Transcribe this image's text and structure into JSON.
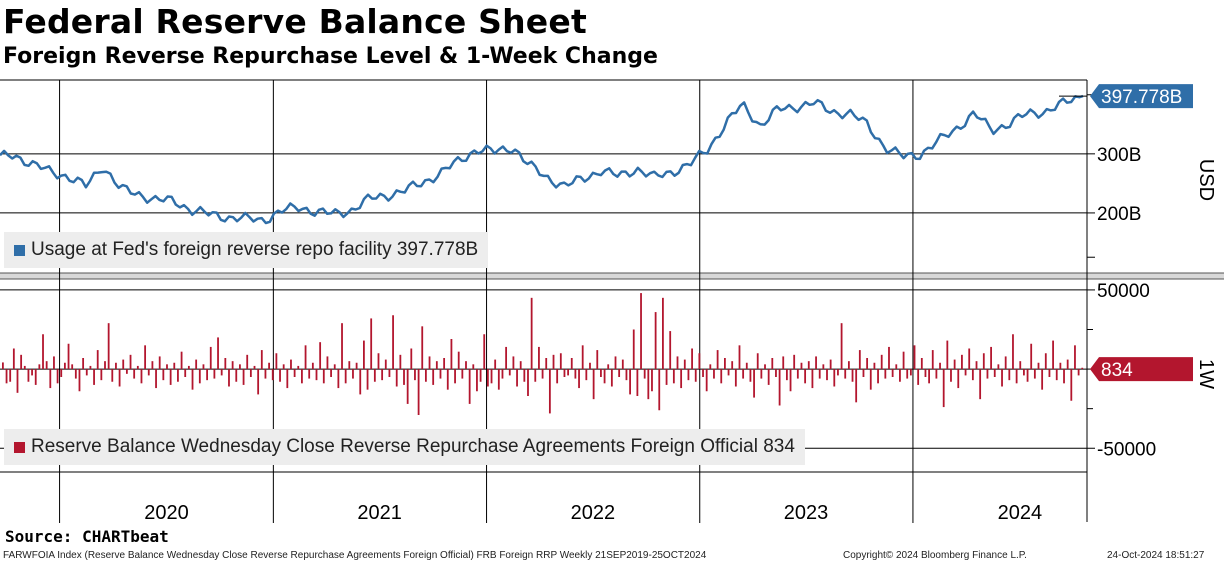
{
  "header": {
    "title": "Federal Reserve Balance Sheet",
    "subtitle": "Foreign Reverse Repurchase Level & 1-Week Change"
  },
  "colors": {
    "level_line": "#2f6ea8",
    "change_bars": "#b3162e",
    "grid": "#000000"
  },
  "chart_data": [
    {
      "type": "line",
      "title": "",
      "ylabel": "USD",
      "ylim": [
        100,
        425
      ],
      "yticks": [
        200,
        300
      ],
      "ytick_labels": [
        "200B",
        "300B"
      ],
      "xlim": [
        "2019-09-21",
        "2024-10-25"
      ],
      "xtick_labels": [
        "2020",
        "2021",
        "2022",
        "2023",
        "2024"
      ],
      "last_value_label": "397.778B",
      "legend": "Usage at Fed's foreign reverse repo facility 397.778B",
      "series": [
        {
          "name": "Usage at Fed's foreign reverse repo facility",
          "x": [
            "2019-09",
            "2019-10",
            "2019-11",
            "2019-12",
            "2020-01",
            "2020-02",
            "2020-03",
            "2020-04",
            "2020-05",
            "2020-06",
            "2020-07",
            "2020-08",
            "2020-09",
            "2020-10",
            "2020-11",
            "2020-12",
            "2021-01",
            "2021-02",
            "2021-03",
            "2021-04",
            "2021-05",
            "2021-06",
            "2021-07",
            "2021-08",
            "2021-09",
            "2021-10",
            "2021-11",
            "2021-12",
            "2022-01",
            "2022-02",
            "2022-03",
            "2022-04",
            "2022-05",
            "2022-06",
            "2022-07",
            "2022-08",
            "2022-09",
            "2022-10",
            "2022-11",
            "2022-12",
            "2023-01",
            "2023-02",
            "2023-03",
            "2023-04",
            "2023-05",
            "2023-06",
            "2023-07",
            "2023-08",
            "2023-09",
            "2023-10",
            "2023-11",
            "2023-12",
            "2024-01",
            "2024-02",
            "2024-03",
            "2024-04",
            "2024-05",
            "2024-06",
            "2024-07",
            "2024-08",
            "2024-09",
            "2024-10"
          ],
          "values": [
            293,
            298,
            283,
            270,
            262,
            245,
            280,
            240,
            232,
            222,
            220,
            205,
            197,
            193,
            190,
            188,
            203,
            210,
            202,
            198,
            205,
            224,
            230,
            238,
            252,
            268,
            288,
            308,
            303,
            312,
            280,
            260,
            245,
            258,
            272,
            262,
            275,
            260,
            270,
            282,
            308,
            352,
            383,
            348,
            375,
            380,
            386,
            372,
            368,
            350,
            310,
            295,
            300,
            322,
            343,
            368,
            340,
            352,
            368,
            372,
            385,
            398
          ]
        }
      ]
    },
    {
      "type": "bar",
      "title": "",
      "ylabel": "1W",
      "ylim": [
        -65000,
        55000
      ],
      "yticks": [
        -50000,
        0,
        50000
      ],
      "ytick_labels": [
        "-50000",
        "",
        "50000"
      ],
      "last_value_label": "834",
      "legend": "Reserve Balance Wednesday Close Reverse Repurchase Agreements Foreign Official 834",
      "series": [
        {
          "name": "Reserve Balance Wednesday Close Reverse Repurchase Agreements Foreign Official",
          "values": [
            4200,
            -9000,
            -8000,
            13000,
            -15000,
            9000,
            2000,
            -8000,
            -4000,
            -10000,
            3000,
            22000,
            5000,
            -12000,
            8000,
            -9000,
            -5000,
            4000,
            16000,
            3000,
            -6000,
            -14000,
            7000,
            -4000,
            2000,
            -10000,
            12000,
            -7000,
            5000,
            29000,
            -8000,
            4000,
            -11000,
            6000,
            -3000,
            9000,
            -6000,
            2000,
            -9000,
            15000,
            -4000,
            5000,
            -12000,
            8000,
            -7000,
            3000,
            -10000,
            4000,
            -8000,
            11000,
            -5000,
            2000,
            -13000,
            6000,
            -9000,
            3000,
            -7000,
            14000,
            -6000,
            20000,
            -4000,
            7000,
            -11000,
            5000,
            -8000,
            3000,
            -10000,
            9000,
            -5000,
            2000,
            -16000,
            12000,
            -6000,
            4000,
            -7000,
            10000,
            -8000,
            3000,
            -12000,
            6000,
            -5000,
            2000,
            -9000,
            15000,
            -6000,
            4000,
            -7000,
            17000,
            -9000,
            8000,
            -5000,
            3000,
            -12000,
            29000,
            -9000,
            5000,
            -6000,
            4000,
            -16000,
            18000,
            -13000,
            32000,
            -8000,
            10000,
            -7000,
            6000,
            -5000,
            34000,
            -11000,
            9000,
            -10000,
            -22000,
            13000,
            -7000,
            -29000,
            27000,
            -8000,
            8000,
            -10000,
            5000,
            -6000,
            7000,
            -13000,
            19000,
            -9000,
            11000,
            -6000,
            5000,
            -22000,
            3000,
            -14000,
            -8000,
            22000,
            -11000,
            -9000,
            6000,
            -13000,
            -6000,
            14000,
            -4000,
            8000,
            -11000,
            5000,
            -8000,
            -17000,
            45000,
            -8000,
            14000,
            -6000,
            7000,
            -28000,
            9000,
            -9000,
            10000,
            -5000,
            -4000,
            7000,
            -6000,
            -12000,
            15000,
            -7000,
            4000,
            -19000,
            12000,
            -5000,
            -9000,
            3000,
            -11000,
            8000,
            -5000,
            6000,
            -7000,
            -16000,
            25000,
            -17000,
            48000,
            -6000,
            -19000,
            -14000,
            36000,
            -26000,
            45000,
            -10000,
            24000,
            -9000,
            8000,
            -12000,
            6000,
            -7000,
            13000,
            -8000,
            10000,
            -5000,
            -14000,
            3000,
            -6000,
            12000,
            -9000,
            7000,
            -4000,
            5000,
            -11000,
            15000,
            -6000,
            4000,
            -8000,
            -18000,
            10000,
            -6000,
            3000,
            -10000,
            7000,
            -5000,
            -23000,
            8000,
            -7000,
            -14000,
            9000,
            -6000,
            4000,
            -9000,
            5000,
            -12000,
            8000,
            -6000,
            3000,
            -7000,
            6000,
            -11000,
            -4000,
            29000,
            -6000,
            5000,
            -8000,
            -21000,
            12000,
            -5000,
            7000,
            -13000,
            4000,
            -9000,
            9000,
            -6000,
            14000,
            -5000,
            3000,
            -8000,
            11000,
            -6000,
            -4000,
            15000,
            -10000,
            7000,
            -5000,
            -9000,
            12000,
            -6000,
            4000,
            -24000,
            18000,
            -8000,
            6000,
            -12000,
            9000,
            -4000,
            13000,
            -7000,
            5000,
            -19000,
            10000,
            -6000,
            14000,
            -5000,
            3000,
            -11000,
            8000,
            -7000,
            22000,
            -9000,
            5000,
            -4000,
            -8000,
            16000,
            -6000,
            4000,
            -13000,
            10000,
            -5000,
            18000,
            -7000,
            4000,
            -9000,
            6000,
            -20000,
            15000,
            -4000,
            834
          ]
        }
      ]
    }
  ],
  "footer": {
    "source": "Source: CHARTbeat",
    "index_desc": "FARWFOIA Index (Reserve Balance Wednesday Close Reverse Repurchase Agreements Foreign Official) FRB Foreign RRP  Weekly 21SEP2019-25OCT2024",
    "copyright": "Copyright© 2024 Bloomberg Finance L.P.",
    "timestamp": "24-Oct-2024 18:51:27"
  }
}
